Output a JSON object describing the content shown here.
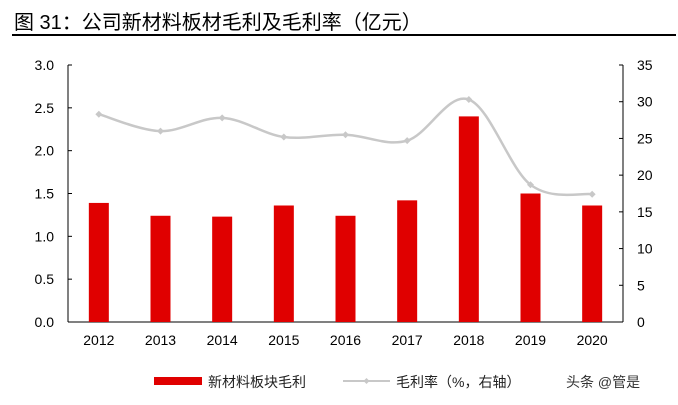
{
  "title": "图 31：公司新材料板材毛利及毛利率（亿元）",
  "watermark": "头条 @管是",
  "chart_data": {
    "type": "bar+line",
    "categories": [
      "2012",
      "2013",
      "2014",
      "2015",
      "2016",
      "2017",
      "2018",
      "2019",
      "2020"
    ],
    "series": [
      {
        "name": "新材料板块毛利",
        "type": "bar",
        "axis": "left",
        "color": "#E00000",
        "values": [
          1.39,
          1.24,
          1.23,
          1.36,
          1.24,
          1.42,
          2.4,
          1.5,
          1.36
        ]
      },
      {
        "name": "毛利率（%，右轴）",
        "type": "line",
        "axis": "right",
        "color": "#C8C8C8",
        "values": [
          28.3,
          26.0,
          27.8,
          25.2,
          25.5,
          24.7,
          30.3,
          18.7,
          17.4
        ]
      }
    ],
    "y_left": {
      "range": [
        0,
        3.0
      ],
      "ticks": [
        "0.0",
        "0.5",
        "1.0",
        "1.5",
        "2.0",
        "2.5",
        "3.0"
      ]
    },
    "y_right": {
      "range": [
        0,
        35
      ],
      "ticks": [
        "0",
        "5",
        "10",
        "15",
        "20",
        "25",
        "30",
        "35"
      ]
    },
    "grid": false,
    "legend": "bottom"
  }
}
